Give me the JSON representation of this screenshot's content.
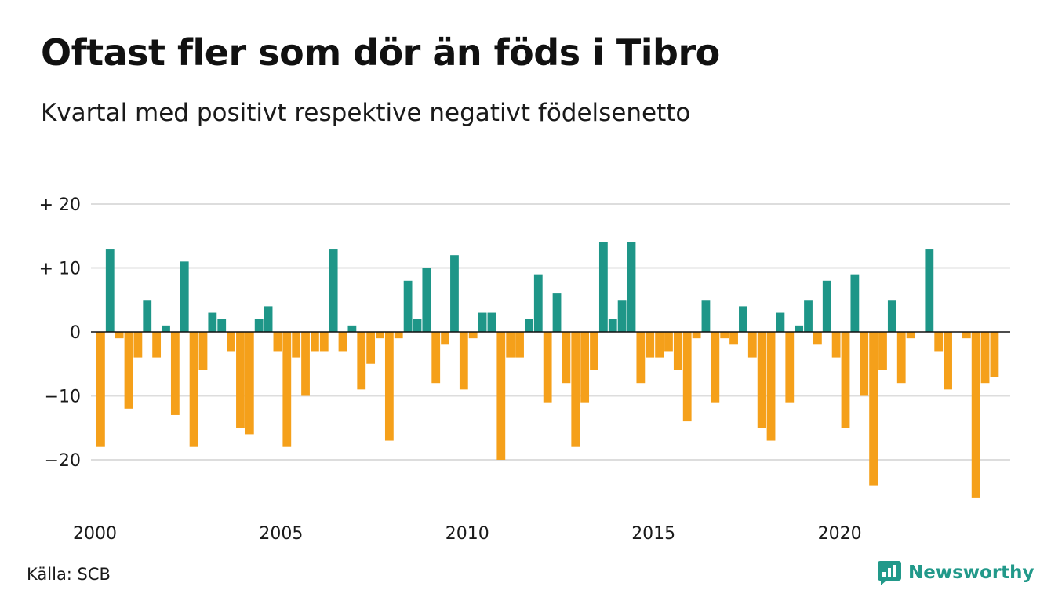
{
  "title": "Oftast fler som dör än föds i Tibro",
  "subtitle": "Kvartal med positivt respektive negativt födelsenetto",
  "source": "Källa: SCB",
  "brand": "Newsworthy",
  "brand_icon": "chart-speech-bubble-icon",
  "colors": {
    "positive": "#1e9688",
    "negative": "#f5a01a",
    "grid": "#dddddd",
    "brand": "#22998a"
  },
  "chart_data": {
    "type": "bar",
    "xlabel": "",
    "ylabel": "",
    "ylim": [
      -27,
      20
    ],
    "y_ticks": [
      {
        "value": 20,
        "label": "+ 20"
      },
      {
        "value": 10,
        "label": "+ 10"
      },
      {
        "value": 0,
        "label": "0"
      },
      {
        "value": -10,
        "label": "−10"
      },
      {
        "value": -20,
        "label": "−20"
      }
    ],
    "x_ticks": [
      "2000",
      "2005",
      "2010",
      "2015",
      "2020"
    ],
    "grid": true,
    "legend": "none",
    "categories": [
      "2000 K1",
      "2000 K2",
      "2000 K3",
      "2000 K4",
      "2001 K1",
      "2001 K2",
      "2001 K3",
      "2001 K4",
      "2002 K1",
      "2002 K2",
      "2002 K3",
      "2002 K4",
      "2003 K1",
      "2003 K2",
      "2003 K3",
      "2003 K4",
      "2004 K1",
      "2004 K2",
      "2004 K3",
      "2004 K4",
      "2005 K1",
      "2005 K2",
      "2005 K3",
      "2005 K4",
      "2006 K1",
      "2006 K2",
      "2006 K3",
      "2006 K4",
      "2007 K1",
      "2007 K2",
      "2007 K3",
      "2007 K4",
      "2008 K1",
      "2008 K2",
      "2008 K3",
      "2008 K4",
      "2009 K1",
      "2009 K2",
      "2009 K3",
      "2009 K4",
      "2010 K1",
      "2010 K2",
      "2010 K3",
      "2010 K4",
      "2011 K1",
      "2011 K2",
      "2011 K3",
      "2011 K4",
      "2012 K1",
      "2012 K2",
      "2012 K3",
      "2012 K4",
      "2013 K1",
      "2013 K2",
      "2013 K3",
      "2013 K4",
      "2014 K1",
      "2014 K2",
      "2014 K3",
      "2014 K4",
      "2015 K1",
      "2015 K2",
      "2015 K3",
      "2015 K4",
      "2016 K1",
      "2016 K2",
      "2016 K3",
      "2016 K4",
      "2017 K1",
      "2017 K2",
      "2017 K3",
      "2017 K4",
      "2018 K1",
      "2018 K2",
      "2018 K3",
      "2018 K4",
      "2019 K1",
      "2019 K2",
      "2019 K3",
      "2019 K4",
      "2020 K1",
      "2020 K2",
      "2020 K3",
      "2020 K4",
      "2021 K1",
      "2021 K2",
      "2021 K3",
      "2021 K4",
      "2022 K1",
      "2022 K2",
      "2022 K3",
      "2022 K4",
      "2023 K1",
      "2023 K2",
      "2023 K3",
      "2023 K4",
      "2024 K1",
      "2024 K2",
      "2024 K3",
      "2024 K4"
    ],
    "values": [
      -18,
      13,
      -1,
      -12,
      -4,
      5,
      -4,
      1,
      -13,
      11,
      -18,
      -6,
      3,
      2,
      -3,
      -15,
      -16,
      2,
      4,
      -3,
      -18,
      -4,
      -10,
      -3,
      -3,
      13,
      -3,
      1,
      -9,
      -5,
      -1,
      -17,
      -1,
      8,
      2,
      10,
      -8,
      -2,
      12,
      -9,
      -1,
      3,
      3,
      -20,
      -4,
      -4,
      2,
      9,
      -11,
      6,
      -8,
      -18,
      -11,
      -6,
      14,
      2,
      5,
      14,
      -8,
      -4,
      -4,
      -3,
      -6,
      -14,
      -1,
      5,
      -11,
      -1,
      -2,
      4,
      -4,
      -15,
      -17,
      3,
      -11,
      1,
      5,
      -2,
      8,
      -4,
      -15,
      9,
      -10,
      -24,
      -6,
      5,
      -8,
      -1,
      0,
      13,
      -3,
      -9,
      0,
      -1,
      -26,
      -8,
      -7,
      0,
      0,
      0
    ],
    "n_bars": 97
  }
}
